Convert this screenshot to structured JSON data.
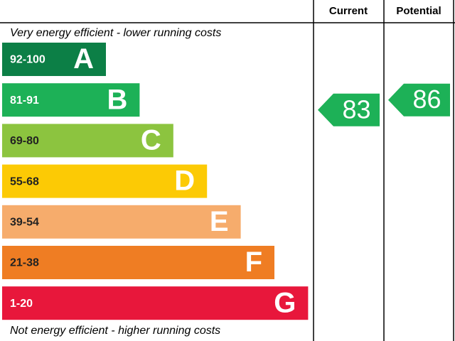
{
  "header": {
    "columns": [
      "Current",
      "Potential"
    ]
  },
  "top_note": "Very energy efficient - lower running costs",
  "bottom_note": "Not energy efficient - higher running costs",
  "bands": [
    {
      "range": "92-100",
      "letter": "A",
      "color": "#0c7f46"
    },
    {
      "range": "81-91",
      "letter": "B",
      "color": "#1db157"
    },
    {
      "range": "69-80",
      "letter": "C",
      "color": "#8cc43f"
    },
    {
      "range": "55-68",
      "letter": "D",
      "color": "#fcca05"
    },
    {
      "range": "39-54",
      "letter": "E",
      "color": "#f6ac6c"
    },
    {
      "range": "21-38",
      "letter": "F",
      "color": "#ef7d23"
    },
    {
      "range": "1-20",
      "letter": "G",
      "color": "#e8173b"
    }
  ],
  "ratings": {
    "current": 83,
    "potential": 86
  },
  "ratings_color": "#1db157"
}
